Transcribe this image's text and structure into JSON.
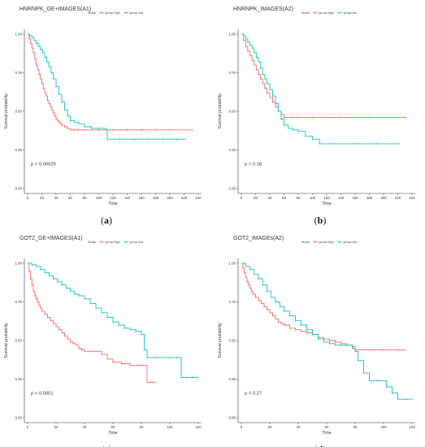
{
  "chart_data": [
    {
      "type": "line",
      "title": "HNRNPK_GE+IMAGES(A1)",
      "caption_open": "(",
      "caption_letter": "a",
      "caption_close": ")",
      "xlabel": "Time",
      "ylabel": "Survival probability",
      "xlim": [
        0,
        240
      ],
      "ylim": [
        0,
        1
      ],
      "xticks": [
        "0",
        "20",
        "40",
        "60",
        "80",
        "100",
        "120",
        "140",
        "160",
        "180",
        "200",
        "220",
        "240"
      ],
      "yticks": [
        "0.00",
        "0.25",
        "0.50",
        "0.75",
        "1.00"
      ],
      "legend_title": "Strata",
      "pvalue": "p = 0.00029",
      "grid": false,
      "series": [
        {
          "name": "group=high",
          "color": "#f26c64",
          "x": [
            0,
            2,
            4,
            6,
            8,
            10,
            12,
            14,
            16,
            18,
            20,
            22,
            24,
            26,
            28,
            30,
            32,
            34,
            36,
            38,
            40,
            42,
            44,
            46,
            48,
            52,
            56,
            60,
            65,
            70,
            80,
            90,
            100,
            110,
            120,
            140,
            160,
            180,
            200,
            232
          ],
          "y": [
            1.0,
            0.97,
            0.94,
            0.91,
            0.88,
            0.84,
            0.8,
            0.77,
            0.74,
            0.71,
            0.68,
            0.65,
            0.62,
            0.6,
            0.57,
            0.55,
            0.53,
            0.51,
            0.49,
            0.47,
            0.45,
            0.44,
            0.43,
            0.42,
            0.41,
            0.4,
            0.39,
            0.38,
            0.38,
            0.38,
            0.38,
            0.38,
            0.38,
            0.38,
            0.38,
            0.38,
            0.38,
            0.38,
            0.38,
            0.38
          ]
        },
        {
          "name": "group=low",
          "color": "#19bfc4",
          "x": [
            0,
            3,
            6,
            9,
            12,
            15,
            18,
            21,
            24,
            27,
            30,
            33,
            36,
            40,
            44,
            48,
            52,
            56,
            60,
            66,
            72,
            80,
            90,
            100,
            110,
            112,
            130,
            150,
            170,
            190,
            210,
            222
          ],
          "y": [
            1.0,
            0.99,
            0.98,
            0.96,
            0.94,
            0.92,
            0.9,
            0.88,
            0.85,
            0.82,
            0.79,
            0.75,
            0.71,
            0.66,
            0.61,
            0.56,
            0.51,
            0.47,
            0.44,
            0.43,
            0.42,
            0.4,
            0.39,
            0.39,
            0.38,
            0.32,
            0.32,
            0.32,
            0.32,
            0.32,
            0.32,
            0.32
          ]
        }
      ]
    },
    {
      "type": "line",
      "title": "HNRNPK_IMAGES(A2)",
      "caption_open": "(",
      "caption_letter": "b",
      "caption_close": ")",
      "xlabel": "Time",
      "ylabel": "Survival probability",
      "xlim": [
        0,
        240
      ],
      "ylim": [
        0,
        1
      ],
      "xticks": [
        "0",
        "20",
        "40",
        "60",
        "80",
        "100",
        "120",
        "140",
        "160",
        "180",
        "200",
        "220",
        "240"
      ],
      "yticks": [
        "0.00",
        "0.25",
        "0.50",
        "0.75",
        "1.00"
      ],
      "legend_title": "Strata",
      "pvalue": "p = 0.18",
      "grid": false,
      "series": [
        {
          "name": "group=high",
          "color": "#f26c64",
          "x": [
            0,
            3,
            6,
            9,
            12,
            15,
            18,
            21,
            24,
            27,
            30,
            33,
            36,
            40,
            44,
            48,
            52,
            56,
            60,
            70,
            80,
            100,
            140,
            180,
            232
          ],
          "y": [
            1.0,
            0.96,
            0.92,
            0.89,
            0.86,
            0.83,
            0.8,
            0.77,
            0.74,
            0.71,
            0.68,
            0.65,
            0.62,
            0.59,
            0.56,
            0.53,
            0.5,
            0.48,
            0.46,
            0.46,
            0.46,
            0.46,
            0.46,
            0.46,
            0.46
          ]
        },
        {
          "name": "group=low",
          "color": "#19bfc4",
          "x": [
            0,
            3,
            6,
            9,
            12,
            15,
            18,
            21,
            24,
            27,
            30,
            33,
            36,
            40,
            44,
            48,
            52,
            56,
            60,
            66,
            72,
            80,
            90,
            100,
            110,
            130,
            160,
            190,
            222
          ],
          "y": [
            1.0,
            0.99,
            0.97,
            0.95,
            0.93,
            0.91,
            0.88,
            0.85,
            0.82,
            0.78,
            0.74,
            0.71,
            0.68,
            0.64,
            0.6,
            0.55,
            0.5,
            0.45,
            0.41,
            0.39,
            0.38,
            0.37,
            0.34,
            0.32,
            0.29,
            0.29,
            0.29,
            0.29,
            0.29
          ]
        }
      ]
    },
    {
      "type": "line",
      "title": "GOT2_GE+IMAGES(A1)",
      "caption_open": "(",
      "caption_letter": "c",
      "caption_close": ")",
      "xlabel": "Time",
      "ylabel": "Survival probability",
      "xlim": [
        0,
        120
      ],
      "ylim": [
        0,
        1
      ],
      "xticks": [
        "0",
        "20",
        "40",
        "60",
        "80",
        "100",
        "120"
      ],
      "yticks": [
        "0.00",
        "0.25",
        "0.50",
        "0.75",
        "1.00"
      ],
      "legend_title": "Strata",
      "pvalue": "p < 0.0001",
      "grid": false,
      "series": [
        {
          "name": "group=high",
          "color": "#f26c64",
          "x": [
            0,
            1,
            2,
            3,
            4,
            5,
            6,
            7,
            8,
            9,
            10,
            12,
            14,
            16,
            18,
            20,
            22,
            24,
            26,
            28,
            30,
            32,
            34,
            36,
            38,
            40,
            44,
            48,
            52,
            56,
            60,
            66,
            72,
            80,
            84,
            86,
            88,
            90
          ],
          "y": [
            1.0,
            0.95,
            0.9,
            0.86,
            0.82,
            0.79,
            0.77,
            0.75,
            0.73,
            0.71,
            0.69,
            0.67,
            0.65,
            0.63,
            0.61,
            0.59,
            0.57,
            0.55,
            0.53,
            0.51,
            0.49,
            0.48,
            0.47,
            0.45,
            0.44,
            0.43,
            0.43,
            0.43,
            0.41,
            0.38,
            0.36,
            0.35,
            0.34,
            0.34,
            0.23,
            0.23,
            0.23,
            0.23
          ]
        },
        {
          "name": "group=low",
          "color": "#19bfc4",
          "x": [
            0,
            3,
            6,
            9,
            12,
            15,
            18,
            21,
            24,
            27,
            30,
            33,
            36,
            40,
            44,
            48,
            52,
            56,
            60,
            64,
            68,
            72,
            76,
            80,
            82,
            84,
            90,
            100,
            105,
            108,
            112,
            116,
            120
          ],
          "y": [
            1.0,
            0.99,
            0.98,
            0.96,
            0.94,
            0.92,
            0.9,
            0.88,
            0.86,
            0.84,
            0.82,
            0.8,
            0.79,
            0.77,
            0.74,
            0.71,
            0.68,
            0.65,
            0.62,
            0.6,
            0.58,
            0.57,
            0.56,
            0.54,
            0.44,
            0.39,
            0.39,
            0.39,
            0.39,
            0.26,
            0.26,
            0.26,
            0.26
          ]
        }
      ]
    },
    {
      "type": "line",
      "title": "GOT2_IMAGEs(A2)",
      "caption_open": "(",
      "caption_letter": "d",
      "caption_close": ")",
      "xlabel": "Time",
      "ylabel": "Survival probability",
      "xlim": [
        0,
        120
      ],
      "ylim": [
        0,
        1
      ],
      "xticks": [
        "0",
        "20",
        "40",
        "60",
        "80",
        "100",
        "120"
      ],
      "yticks": [
        "0.00",
        "0.25",
        "0.50",
        "0.75",
        "1.00"
      ],
      "legend_title": "Strata",
      "pvalue": "p = 0.27",
      "grid": false,
      "series": [
        {
          "name": "group=high",
          "color": "#f26c64",
          "x": [
            0,
            1,
            2,
            3,
            4,
            5,
            6,
            7,
            8,
            10,
            12,
            14,
            16,
            18,
            20,
            22,
            24,
            26,
            28,
            30,
            34,
            38,
            42,
            46,
            50,
            54,
            58,
            62,
            66,
            70,
            74,
            78,
            80,
            90,
            100,
            110,
            115
          ],
          "y": [
            1.0,
            0.97,
            0.94,
            0.91,
            0.88,
            0.86,
            0.84,
            0.82,
            0.8,
            0.78,
            0.76,
            0.74,
            0.72,
            0.7,
            0.68,
            0.66,
            0.64,
            0.62,
            0.61,
            0.6,
            0.58,
            0.57,
            0.56,
            0.55,
            0.54,
            0.52,
            0.51,
            0.5,
            0.49,
            0.48,
            0.47,
            0.45,
            0.44,
            0.44,
            0.44,
            0.44,
            0.44
          ]
        },
        {
          "name": "group=low",
          "color": "#19bfc4",
          "x": [
            0,
            3,
            6,
            9,
            12,
            15,
            18,
            21,
            24,
            27,
            30,
            34,
            38,
            42,
            46,
            50,
            54,
            58,
            62,
            66,
            70,
            74,
            78,
            80,
            82,
            86,
            90,
            96,
            102,
            106,
            110,
            116,
            120
          ],
          "y": [
            1.0,
            0.98,
            0.96,
            0.93,
            0.9,
            0.86,
            0.82,
            0.78,
            0.75,
            0.72,
            0.69,
            0.66,
            0.63,
            0.6,
            0.57,
            0.54,
            0.51,
            0.49,
            0.48,
            0.47,
            0.47,
            0.47,
            0.46,
            0.43,
            0.37,
            0.29,
            0.24,
            0.24,
            0.2,
            0.16,
            0.12,
            0.12,
            0.12
          ]
        }
      ]
    }
  ]
}
